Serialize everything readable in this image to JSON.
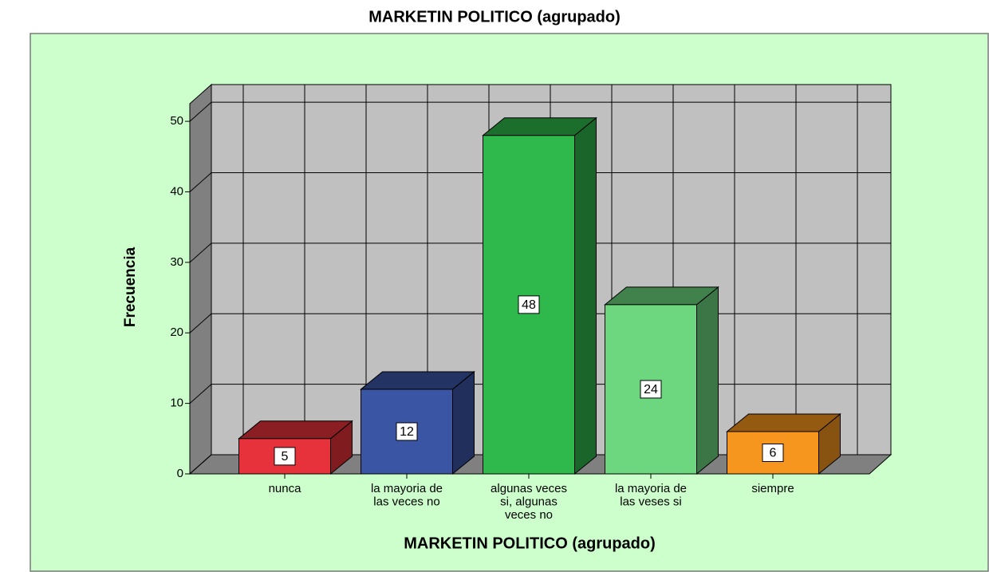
{
  "chart_data": {
    "type": "bar3d",
    "title": "MARKETIN POLITICO (agrupado)",
    "x_label": "MARKETIN POLITICO (agrupado)",
    "y_label": "Frecuencia",
    "categories": [
      "nunca",
      "la mayoria de\nlas veces no",
      "algunas veces\nsi, algunas\nveces no",
      "la mayoria de\nlas veses si",
      "siempre"
    ],
    "values": [
      5,
      12,
      48,
      24,
      6
    ],
    "colors": [
      "#e8323b",
      "#3b55a5",
      "#2fb84b",
      "#6dd77f",
      "#f7961e"
    ],
    "ylim": [
      0,
      52.5
    ],
    "yticks": [
      0,
      10,
      20,
      30,
      40,
      50
    ],
    "grid": true
  }
}
